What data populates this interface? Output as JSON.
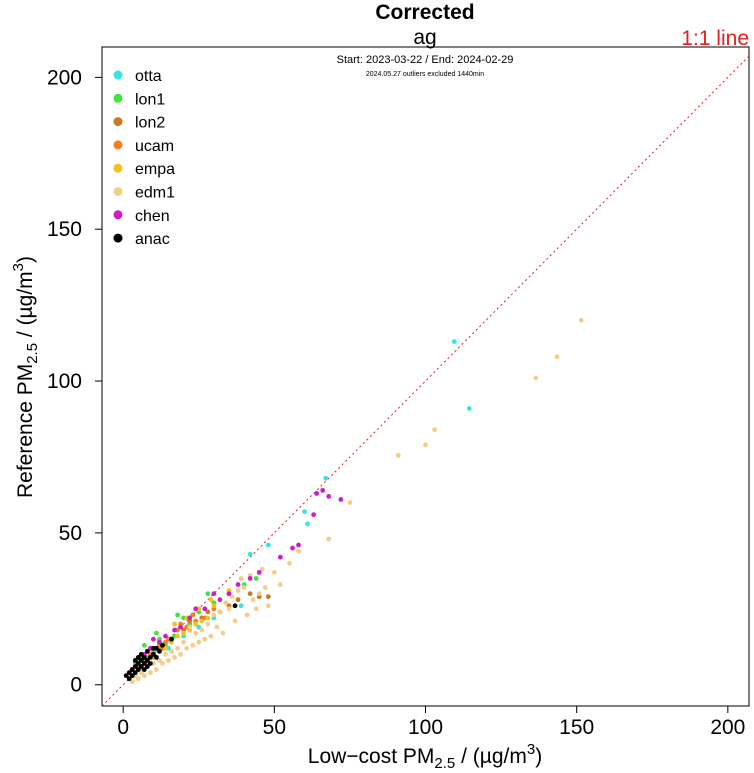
{
  "chart_data": {
    "type": "scatter",
    "title": "Corrected",
    "subtitle": "ag",
    "date_range": "Start: 2023-03-22 / End: 2024-02-29",
    "note": "2024.05.27 outliers excluded 1440min",
    "reference_line_label": "1:1 line",
    "xlabel": {
      "prefix": "Low−cost PM",
      "sub": "2.5",
      "suffix": " / (µg/m",
      "sup": "3",
      "close": ")"
    },
    "ylabel": {
      "prefix": "Reference PM",
      "sub": "2.5",
      "suffix": " / (µg/m",
      "sup": "3",
      "close": ")"
    },
    "xlim": [
      -7,
      207
    ],
    "ylim": [
      -7,
      210
    ],
    "x_ticks": [
      0,
      50,
      100,
      150,
      200
    ],
    "y_ticks": [
      0,
      50,
      100,
      150,
      200
    ],
    "grid": false,
    "legend_position": "top-left",
    "series": [
      {
        "name": "otta",
        "color": "#33E6E6",
        "points": [
          [
            109.5,
            113
          ],
          [
            114.5,
            91
          ],
          [
            67,
            68
          ],
          [
            60,
            57
          ],
          [
            61,
            53
          ],
          [
            48,
            46
          ],
          [
            42,
            43
          ],
          [
            39,
            26
          ],
          [
            30,
            22
          ],
          [
            25,
            19
          ],
          [
            20,
            16
          ],
          [
            15,
            12
          ],
          [
            10,
            9
          ],
          [
            6,
            5
          ]
        ]
      },
      {
        "name": "lon1",
        "color": "#3DE63D",
        "points": [
          [
            44,
            35
          ],
          [
            40,
            33
          ],
          [
            35,
            30
          ],
          [
            30,
            27
          ],
          [
            25,
            24
          ],
          [
            22,
            20
          ],
          [
            20,
            22
          ],
          [
            17,
            16
          ],
          [
            14,
            13
          ],
          [
            12,
            15
          ],
          [
            10,
            11
          ],
          [
            8,
            9
          ],
          [
            6,
            10
          ],
          [
            5,
            8
          ],
          [
            4,
            7
          ],
          [
            3,
            5
          ],
          [
            7,
            13
          ],
          [
            11,
            17
          ],
          [
            18,
            23
          ],
          [
            28,
            30
          ]
        ]
      },
      {
        "name": "lon2",
        "color": "#CC7A1F",
        "points": [
          [
            48,
            29
          ],
          [
            45,
            29
          ],
          [
            42,
            30
          ],
          [
            38,
            28
          ],
          [
            35,
            26
          ],
          [
            32,
            24
          ],
          [
            28,
            24
          ],
          [
            24,
            20
          ],
          [
            20,
            18
          ],
          [
            16,
            15
          ],
          [
            13,
            12
          ],
          [
            10,
            10
          ],
          [
            7,
            8
          ],
          [
            5,
            6
          ],
          [
            8,
            11
          ],
          [
            12,
            14
          ],
          [
            22,
            21
          ],
          [
            26,
            22
          ]
        ]
      },
      {
        "name": "ucam",
        "color": "#F2801F",
        "points": [
          [
            30,
            25
          ],
          [
            27,
            22
          ],
          [
            24,
            21
          ],
          [
            21,
            19
          ],
          [
            18,
            18
          ],
          [
            15,
            15
          ],
          [
            12,
            13
          ],
          [
            9,
            10
          ],
          [
            7,
            8
          ],
          [
            5,
            7
          ],
          [
            3,
            5
          ],
          [
            6,
            9
          ],
          [
            10,
            12
          ],
          [
            14,
            14
          ],
          [
            19,
            20
          ],
          [
            23,
            23
          ]
        ]
      },
      {
        "name": "empa",
        "color": "#F2C21F",
        "points": [
          [
            35,
            31
          ],
          [
            32,
            28
          ],
          [
            30,
            26
          ],
          [
            28,
            22
          ],
          [
            26,
            21
          ],
          [
            24,
            20
          ],
          [
            22,
            18
          ],
          [
            20,
            17
          ],
          [
            18,
            16
          ],
          [
            16,
            14
          ],
          [
            14,
            12
          ],
          [
            12,
            11
          ],
          [
            10,
            9
          ],
          [
            8,
            7
          ],
          [
            6,
            6
          ],
          [
            4,
            4
          ],
          [
            25,
            25
          ],
          [
            29,
            28
          ],
          [
            17,
            20
          ],
          [
            21,
            22
          ]
        ]
      },
      {
        "name": "edm1",
        "color": "#F5CC8A",
        "points": [
          [
            151.5,
            120
          ],
          [
            143.5,
            108
          ],
          [
            136.5,
            101
          ],
          [
            103,
            84
          ],
          [
            100,
            79
          ],
          [
            91,
            75.5
          ],
          [
            75,
            60
          ],
          [
            68,
            48
          ],
          [
            58,
            44
          ],
          [
            50,
            37
          ],
          [
            48,
            26
          ],
          [
            45,
            30
          ],
          [
            43,
            28
          ],
          [
            40,
            32
          ],
          [
            38,
            31
          ],
          [
            36,
            29
          ],
          [
            34,
            27
          ],
          [
            32,
            24
          ],
          [
            30,
            23
          ],
          [
            28,
            20
          ],
          [
            26,
            18
          ],
          [
            24,
            17
          ],
          [
            22,
            19
          ],
          [
            20,
            14
          ],
          [
            18,
            12
          ],
          [
            16,
            11
          ],
          [
            14,
            10
          ],
          [
            12,
            8
          ],
          [
            10,
            7
          ],
          [
            8,
            6
          ],
          [
            6,
            4
          ],
          [
            4,
            3
          ],
          [
            3,
            1
          ],
          [
            27,
            15
          ],
          [
            33,
            17
          ],
          [
            23,
            13
          ],
          [
            19,
            10
          ],
          [
            15,
            8
          ],
          [
            11,
            5
          ],
          [
            7,
            3
          ],
          [
            55,
            40
          ],
          [
            52,
            33
          ],
          [
            47,
            32
          ],
          [
            44,
            25
          ],
          [
            41,
            23
          ],
          [
            37,
            21
          ],
          [
            35,
            25
          ],
          [
            31,
            19
          ],
          [
            29,
            16
          ],
          [
            25,
            14
          ],
          [
            21,
            12
          ],
          [
            17,
            9
          ],
          [
            13,
            7
          ],
          [
            9,
            4
          ],
          [
            5,
            2
          ],
          [
            39,
            35
          ],
          [
            46,
            38
          ],
          [
            42,
            36
          ]
        ]
      },
      {
        "name": "chen",
        "color": "#CC1FCC",
        "points": [
          [
            72,
            61
          ],
          [
            66,
            64
          ],
          [
            68,
            62
          ],
          [
            64,
            63
          ],
          [
            63,
            56
          ],
          [
            58,
            46
          ],
          [
            56,
            45
          ],
          [
            52,
            42
          ],
          [
            45,
            37
          ],
          [
            42,
            35
          ],
          [
            38,
            33
          ],
          [
            35,
            30
          ],
          [
            32,
            28
          ],
          [
            30,
            30
          ],
          [
            27,
            25
          ],
          [
            24,
            25
          ],
          [
            22,
            22
          ],
          [
            19,
            19
          ],
          [
            17,
            18
          ],
          [
            14,
            16
          ],
          [
            12,
            14
          ],
          [
            10,
            15
          ],
          [
            9,
            12
          ],
          [
            7,
            10
          ]
        ]
      },
      {
        "name": "anac",
        "color": "#000000",
        "points": [
          [
            37,
            26
          ],
          [
            16,
            15
          ],
          [
            13,
            13
          ],
          [
            12,
            11
          ],
          [
            11,
            12
          ],
          [
            10,
            10
          ],
          [
            9,
            9
          ],
          [
            8,
            11
          ],
          [
            8,
            8
          ],
          [
            7,
            9
          ],
          [
            7,
            7
          ],
          [
            6,
            8
          ],
          [
            6,
            6
          ],
          [
            5,
            7
          ],
          [
            5,
            5
          ],
          [
            4,
            6
          ],
          [
            4,
            4
          ],
          [
            3,
            5
          ],
          [
            3,
            3
          ],
          [
            2,
            4
          ],
          [
            2,
            2
          ],
          [
            1,
            3
          ],
          [
            9,
            7
          ],
          [
            10,
            12
          ],
          [
            11,
            9
          ],
          [
            6,
            10
          ],
          [
            5,
            9
          ],
          [
            4,
            8
          ],
          [
            7,
            5
          ],
          [
            8,
            6
          ]
        ]
      }
    ]
  }
}
